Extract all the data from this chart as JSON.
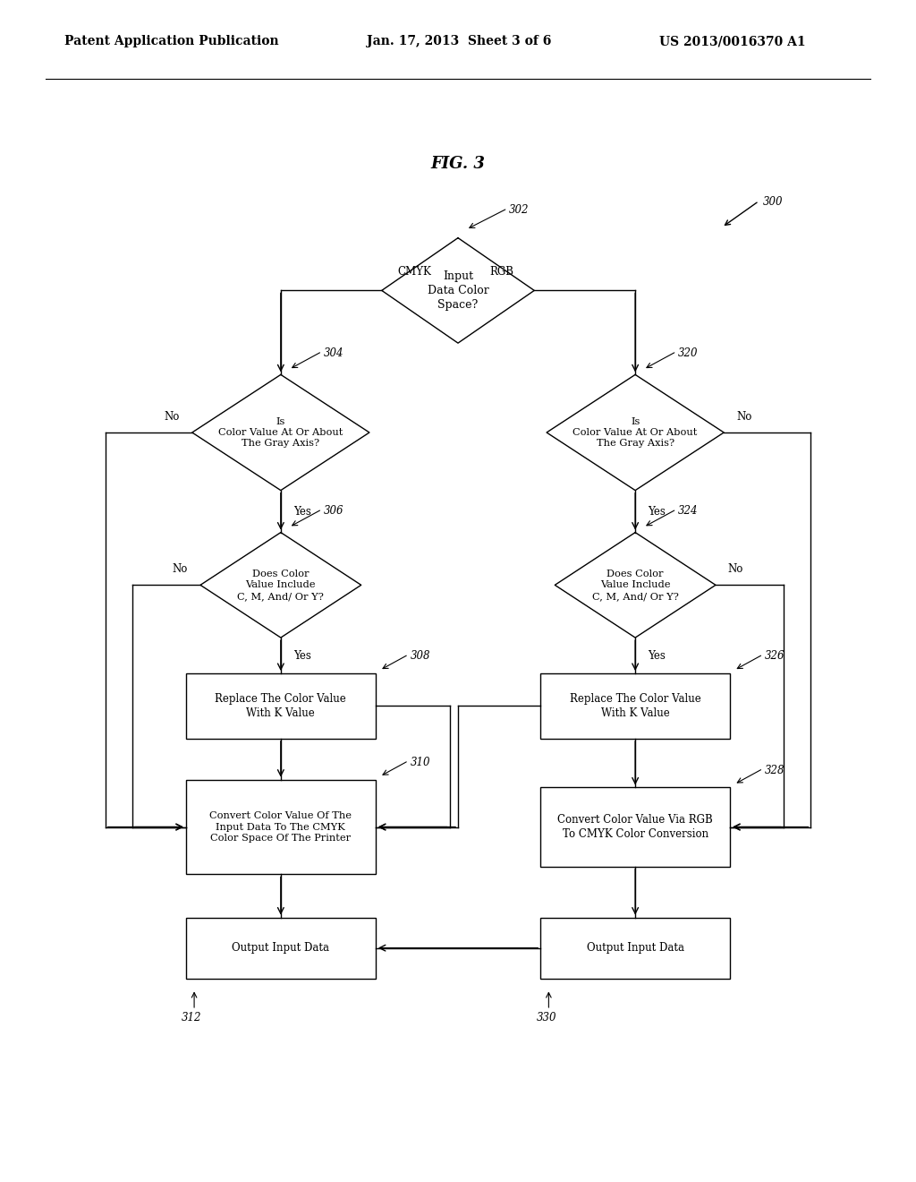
{
  "title": "FIG. 3",
  "header_left": "Patent Application Publication",
  "header_mid": "Jan. 17, 2013  Sheet 3 of 6",
  "header_right": "US 2013/0016370 A1",
  "bg_color": "#ffffff",
  "line_color": "#000000",
  "text_color": "#000000"
}
